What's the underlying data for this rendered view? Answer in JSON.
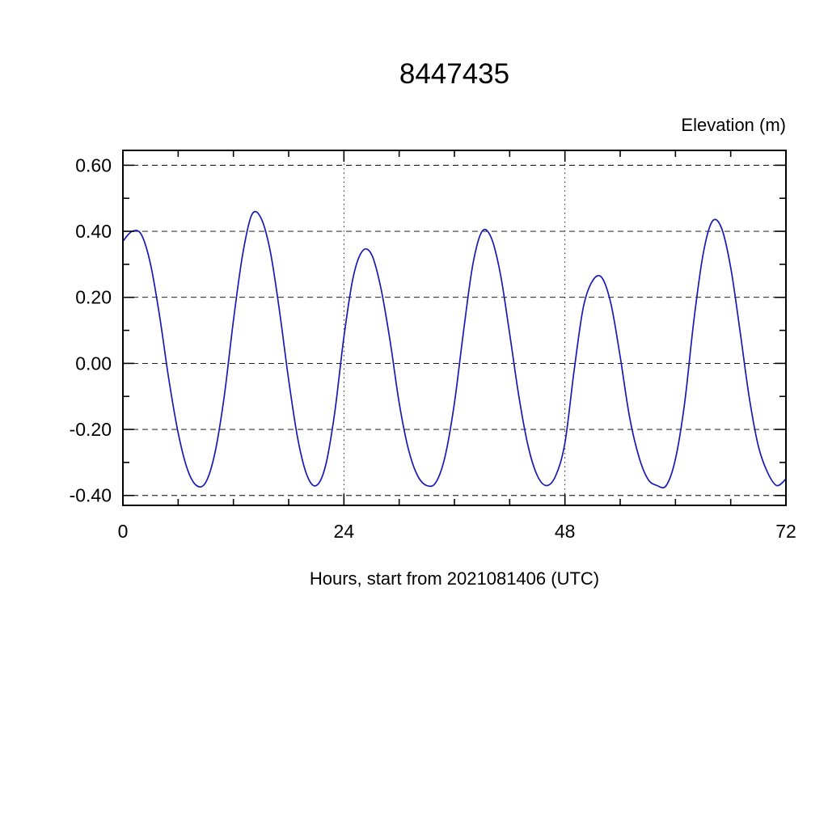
{
  "chart_data": {
    "type": "line",
    "title": "8447435",
    "xlabel": "Hours, start from 2021081406 (UTC)",
    "ylabel": "Elevation (m)",
    "xlim": [
      0,
      72
    ],
    "ylim": [
      -0.43,
      0.645
    ],
    "xticks": [
      0,
      24,
      48,
      72
    ],
    "yticks": [
      -0.4,
      -0.2,
      0.0,
      0.2,
      0.4,
      0.6
    ],
    "x_minor_step": 6,
    "y_minor_step": 0.1,
    "grid": true,
    "x_grid_at": [
      24,
      48
    ],
    "line_color": "#1a1ab4",
    "frame_color": "#000000",
    "legend": "none",
    "x": [
      0,
      1,
      2,
      3,
      4,
      5,
      6,
      7,
      8,
      9,
      10,
      11,
      12,
      13,
      14,
      15,
      16,
      17,
      18,
      19,
      20,
      21,
      22,
      23,
      24,
      25,
      26,
      27,
      28,
      29,
      30,
      31,
      32,
      33,
      34,
      35,
      36,
      37,
      38,
      39,
      40,
      41,
      42,
      43,
      44,
      45,
      46,
      47,
      48,
      49,
      50,
      51,
      52,
      53,
      54,
      55,
      56,
      57,
      58,
      59,
      60,
      61,
      62,
      63,
      64,
      65,
      66,
      67,
      68,
      69,
      70,
      71,
      72
    ],
    "y": [
      0.37,
      0.4,
      0.39,
      0.3,
      0.14,
      -0.05,
      -0.21,
      -0.32,
      -0.37,
      -0.36,
      -0.27,
      -0.1,
      0.13,
      0.33,
      0.45,
      0.44,
      0.34,
      0.16,
      -0.05,
      -0.23,
      -0.34,
      -0.37,
      -0.31,
      -0.15,
      0.08,
      0.26,
      0.34,
      0.33,
      0.23,
      0.07,
      -0.12,
      -0.26,
      -0.34,
      -0.37,
      -0.36,
      -0.28,
      -0.12,
      0.1,
      0.3,
      0.4,
      0.38,
      0.27,
      0.09,
      -0.1,
      -0.25,
      -0.34,
      -0.37,
      -0.34,
      -0.24,
      -0.02,
      0.17,
      0.25,
      0.26,
      0.18,
      0.02,
      -0.16,
      -0.28,
      -0.35,
      -0.37,
      -0.37,
      -0.29,
      -0.12,
      0.13,
      0.33,
      0.43,
      0.41,
      0.29,
      0.1,
      -0.1,
      -0.25,
      -0.33,
      -0.37,
      -0.35
    ]
  }
}
